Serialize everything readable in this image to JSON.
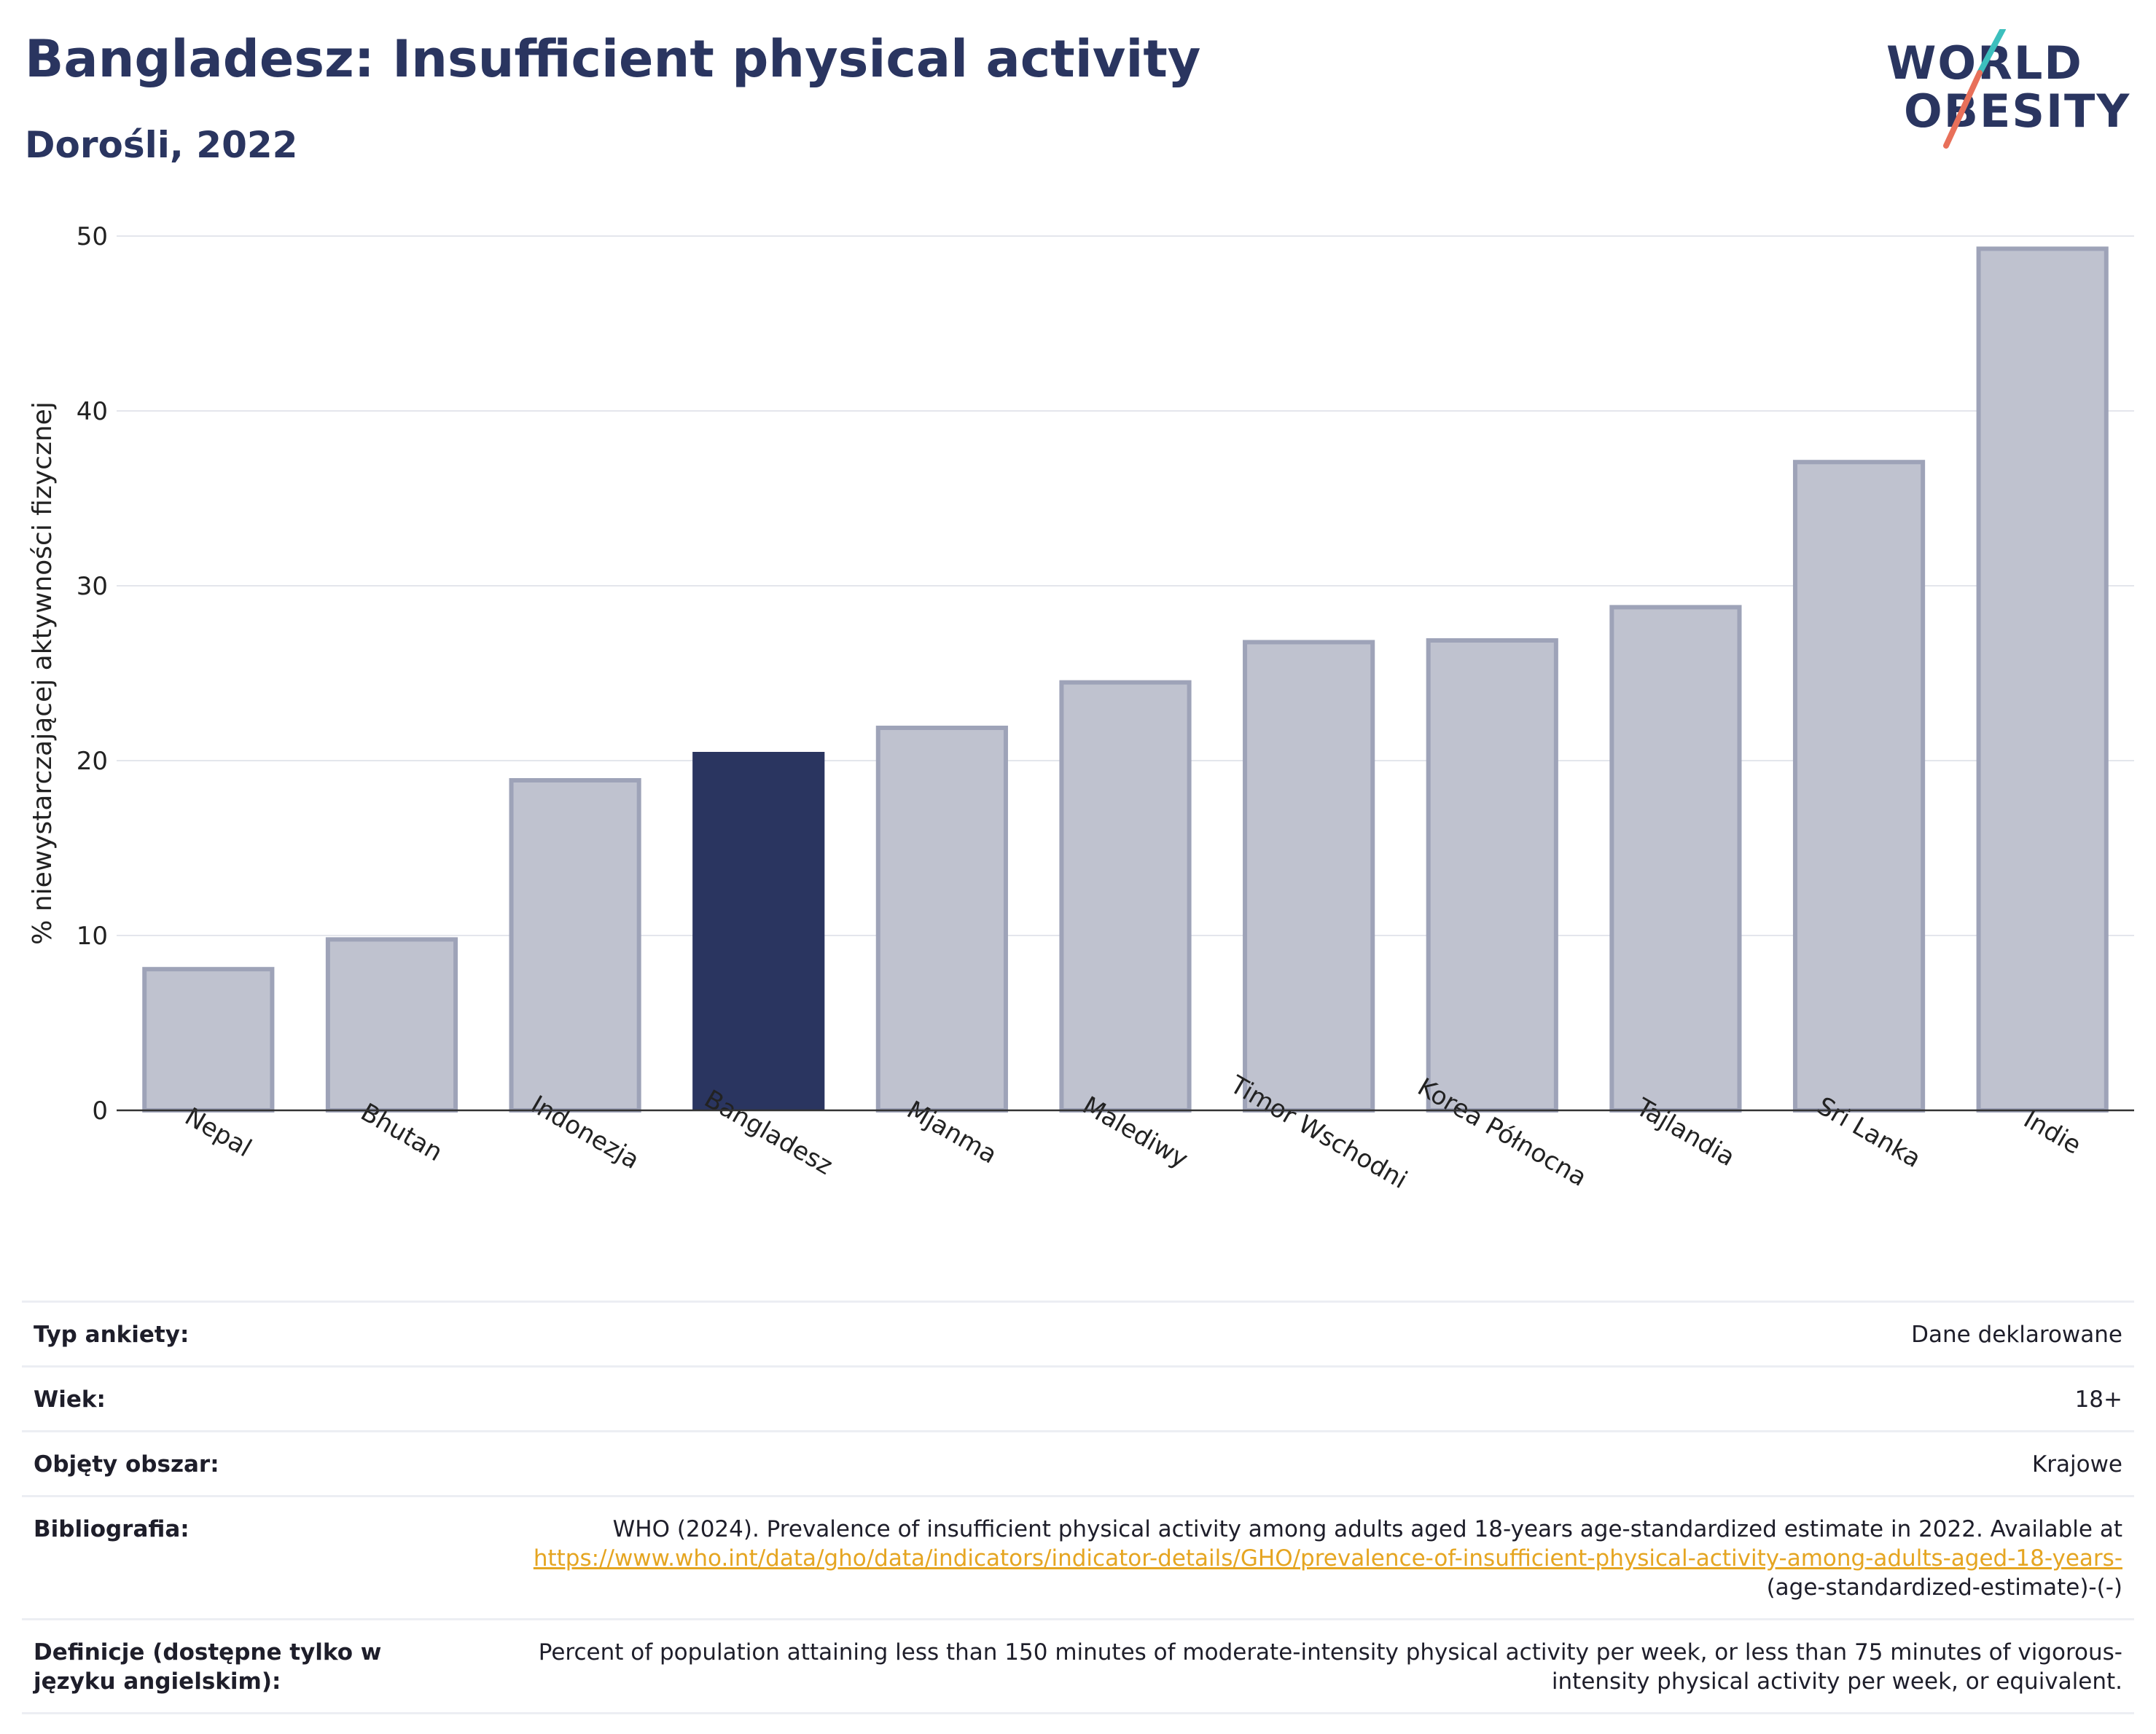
{
  "header": {
    "title": "Bangladesz: Insufficient physical activity",
    "subtitle": "Dorośli, 2022",
    "logo_line1": "WORLD",
    "logo_line2": "OBESITY"
  },
  "colors": {
    "highlight": "#2a3560",
    "bar": "#bfc2cf",
    "bar_border": "#9ea3b8",
    "logo_teal": "#3cbfbd",
    "logo_coral": "#e8705a"
  },
  "chart_data": {
    "type": "bar",
    "ylabel": "% niewystarczającej aktywności fizycznej",
    "ylim": [
      0,
      50
    ],
    "yticks": [
      0,
      10,
      20,
      30,
      40,
      50
    ],
    "highlight": "Bangladesz",
    "categories": [
      "Nepal",
      "Bhutan",
      "Indonezja",
      "Bangladesz",
      "Mjanma",
      "Malediwy",
      "Timor Wschodni",
      "Korea Północna",
      "Tajlandia",
      "Sri Lanka",
      "Indie"
    ],
    "values": [
      8.2,
      9.9,
      19.0,
      20.5,
      22.0,
      24.6,
      26.9,
      27.0,
      28.9,
      37.2,
      49.4
    ],
    "grid": true
  },
  "info": [
    {
      "label": "Typ ankiety:",
      "value": "Dane deklarowane"
    },
    {
      "label": "Wiek:",
      "value": "18+"
    },
    {
      "label": "Objęty obszar:",
      "value": "Krajowe"
    },
    {
      "label": "Bibliografia:",
      "value_text": "WHO (2024). Prevalence of insufficient physical activity among adults aged 18-years age-standardized estimate in 2022. Available at",
      "value_link": "https://www.who.int/data/gho/data/indicators/indicator-details/GHO/prevalence-of-insufficient-physical-activity-among-adults-aged-18-years-",
      "value_tail": "(age-standardized-estimate)-(-)"
    },
    {
      "label": "Definicje (dostępne tylko w języku angielskim):",
      "value": "Percent of population attaining less than 150 minutes of moderate-intensity physical activity per week, or less than 75 minutes of vigorous-intensity physical activity per week, or equivalent."
    }
  ]
}
